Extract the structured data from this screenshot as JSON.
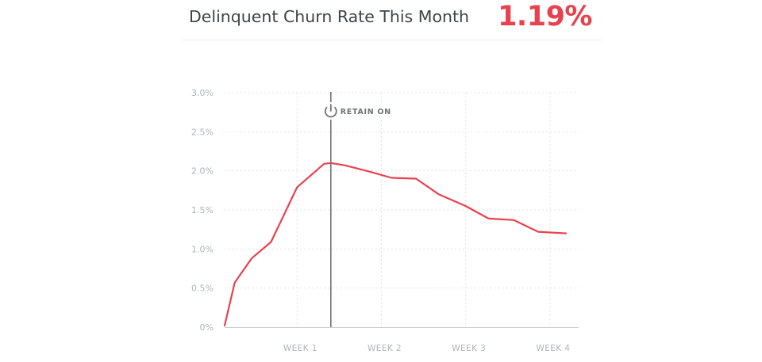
{
  "header": {
    "title": "Delinquent Churn Rate This Month",
    "value": "1.19%"
  },
  "chart_data": {
    "type": "line",
    "title": "Delinquent Churn Rate This Month",
    "xlabel": "",
    "ylabel": "",
    "x_ticks": [
      {
        "label": "WEEK 1",
        "x": 1
      },
      {
        "label": "WEEK 2",
        "x": 2
      },
      {
        "label": "WEEK 3",
        "x": 3
      },
      {
        "label": "WEEK 4",
        "x": 4
      }
    ],
    "y_ticks": [
      "0%",
      "0.5%",
      "1.0%",
      "1.5%",
      "2.0%",
      "2.5%",
      "3.0%"
    ],
    "ylim": [
      0,
      3.0
    ],
    "xlim": [
      0.14,
      4.34
    ],
    "grid": true,
    "series": [
      {
        "color": "#e8424f",
        "points": [
          {
            "x": 0.14,
            "y": 0.02
          },
          {
            "x": 0.26,
            "y": 0.57
          },
          {
            "x": 0.46,
            "y": 0.88
          },
          {
            "x": 0.69,
            "y": 1.09
          },
          {
            "x": 1.0,
            "y": 1.79
          },
          {
            "x": 1.32,
            "y": 2.09
          },
          {
            "x": 1.4,
            "y": 2.1
          },
          {
            "x": 1.57,
            "y": 2.07
          },
          {
            "x": 1.86,
            "y": 1.99
          },
          {
            "x": 2.12,
            "y": 1.91
          },
          {
            "x": 2.41,
            "y": 1.9
          },
          {
            "x": 2.68,
            "y": 1.7
          },
          {
            "x": 3.0,
            "y": 1.55
          },
          {
            "x": 3.27,
            "y": 1.39
          },
          {
            "x": 3.57,
            "y": 1.37
          },
          {
            "x": 3.86,
            "y": 1.22
          },
          {
            "x": 4.19,
            "y": 1.2
          }
        ]
      }
    ],
    "annotation": {
      "label": "RETAIN ON",
      "x": 1.4,
      "icon": "power-icon",
      "line_color": "#6e7378"
    }
  }
}
